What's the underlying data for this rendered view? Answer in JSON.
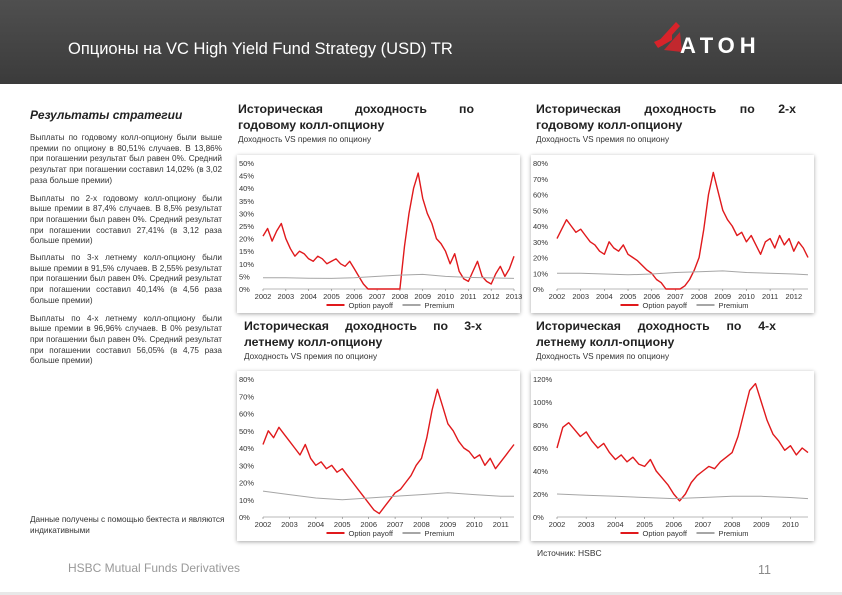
{
  "header": {
    "title": "Опционы на VC High Yield Fund Strategy (USD) TR",
    "logo_text": "АТОН",
    "logo_color": "#d8232a"
  },
  "sidebar": {
    "title": "Результаты стратегии",
    "paragraphs": [
      "Выплаты по годовому колл-опциону были выше премии по опциону в 80,51% случаев. В 13,86% при погашении результат был равен 0%. Средний результат при погашении составил 14,02% (в 3,02 раза больше премии)",
      "Выплаты по 2-х годовому колл-опциону были выше премии в 87,4% случаев. В 8,5% результат при погашении был равен 0%. Средний результат при погашении составил 27,41% (в 3,12 раза больше премии)",
      "Выплаты по 3-х летнему колл-опциону были выше премии в 91,5% случаев. В 2,55% результат при погашении был равен 0%. Средний результат при погашении составил 40,14% (в 4,56 раза больше премии)",
      "Выплаты по 4-х летнему колл-опциону были выше премии в 96,96% случаев. В 0% результат при погашении был равен 0%. Средний результат при погашении составил 56,05% (в 4,75 раза больше премии)"
    ],
    "footnote": "Данные получены с помощью бектеста и являются индикативными"
  },
  "panels": [
    {
      "title": "Историческая доходность по годовому колл-опциону",
      "subtitle": "Доходность VS премия по опциону"
    },
    {
      "title": "Историческая доходность по 2-х годовому колл-опциону",
      "subtitle": "Доходность VS премия по опциону"
    },
    {
      "title": "Историческая доходность по 3-х летнему колл-опциону",
      "subtitle": "Доходность VS премия по опциону"
    },
    {
      "title": "Историческая доходность по 4-х летнему колл-опциону",
      "subtitle": "Доходность VS премия по опциону"
    }
  ],
  "chart_data": [
    {
      "type": "line",
      "ylim": [
        0,
        50
      ],
      "yticks": [
        "0%",
        "5%",
        "10%",
        "15%",
        "20%",
        "25%",
        "30%",
        "35%",
        "40%",
        "45%",
        "50%"
      ],
      "xticks": [
        "2002",
        "2003",
        "2004",
        "2005",
        "2006",
        "2007",
        "2008",
        "2009",
        "2010",
        "2011",
        "2012",
        "2013"
      ],
      "xlim": [
        2002,
        2013
      ],
      "series": [
        {
          "name": "Option payoff",
          "color": "#e0191c",
          "x": [
            2002.0,
            2002.2,
            2002.4,
            2002.6,
            2002.8,
            2003.0,
            2003.2,
            2003.4,
            2003.6,
            2003.8,
            2004.0,
            2004.2,
            2004.4,
            2004.6,
            2004.8,
            2005.0,
            2005.2,
            2005.4,
            2005.6,
            2005.8,
            2006.0,
            2006.2,
            2006.4,
            2006.6,
            2006.8,
            2007.0,
            2007.2,
            2007.4,
            2007.6,
            2007.8,
            2008.0,
            2008.2,
            2008.4,
            2008.6,
            2008.8,
            2009.0,
            2009.2,
            2009.4,
            2009.6,
            2009.8,
            2010.0,
            2010.2,
            2010.4,
            2010.6,
            2010.8,
            2011.0,
            2011.2,
            2011.4,
            2011.6,
            2011.8,
            2012.0,
            2012.2,
            2012.4,
            2012.6,
            2012.8,
            2013.0
          ],
          "values": [
            21,
            24,
            19,
            23,
            26,
            20,
            16,
            13,
            15,
            14,
            12,
            11,
            13,
            12,
            10,
            11,
            12,
            10,
            9,
            11,
            8,
            5,
            2,
            0,
            0,
            0,
            0,
            0,
            0,
            0,
            0,
            17,
            30,
            40,
            46,
            36,
            30,
            26,
            20,
            18,
            15,
            10,
            14,
            7,
            4,
            3,
            7,
            11,
            5,
            3,
            2,
            6,
            9,
            5,
            8,
            13
          ]
        },
        {
          "name": "Premium",
          "color": "#a6a6a6",
          "x": [
            2002.0,
            2003.0,
            2004.0,
            2005.0,
            2006.0,
            2007.0,
            2008.0,
            2009.0,
            2010.0,
            2011.0,
            2012.0,
            2013.0
          ],
          "values": [
            4.5,
            4.5,
            4.3,
            4.2,
            4.5,
            5.0,
            5.5,
            5.8,
            5.0,
            4.6,
            4.4,
            4.2
          ]
        }
      ]
    },
    {
      "type": "line",
      "ylim": [
        0,
        80
      ],
      "yticks": [
        "0%",
        "10%",
        "20%",
        "30%",
        "40%",
        "50%",
        "60%",
        "70%",
        "80%"
      ],
      "xticks": [
        "2002",
        "2003",
        "2004",
        "2005",
        "2006",
        "2007",
        "2008",
        "2009",
        "2010",
        "2011",
        "2012"
      ],
      "xlim": [
        2002,
        2012.6
      ],
      "series": [
        {
          "name": "Option payoff",
          "color": "#e0191c",
          "x": [
            2002.0,
            2002.2,
            2002.4,
            2002.6,
            2002.8,
            2003.0,
            2003.2,
            2003.4,
            2003.6,
            2003.8,
            2004.0,
            2004.2,
            2004.4,
            2004.6,
            2004.8,
            2005.0,
            2005.2,
            2005.4,
            2005.6,
            2005.8,
            2006.0,
            2006.2,
            2006.4,
            2006.6,
            2006.8,
            2007.0,
            2007.2,
            2007.4,
            2007.6,
            2007.8,
            2008.0,
            2008.2,
            2008.4,
            2008.6,
            2008.8,
            2009.0,
            2009.2,
            2009.4,
            2009.6,
            2009.8,
            2010.0,
            2010.2,
            2010.4,
            2010.6,
            2010.8,
            2011.0,
            2011.2,
            2011.4,
            2011.6,
            2011.8,
            2012.0,
            2012.2,
            2012.4,
            2012.6
          ],
          "values": [
            32,
            38,
            44,
            40,
            36,
            38,
            34,
            30,
            28,
            24,
            22,
            30,
            26,
            24,
            28,
            22,
            20,
            18,
            15,
            12,
            10,
            6,
            4,
            0,
            0,
            0,
            0,
            2,
            6,
            12,
            20,
            38,
            60,
            74,
            62,
            50,
            44,
            40,
            34,
            36,
            30,
            34,
            28,
            22,
            30,
            32,
            26,
            34,
            28,
            32,
            24,
            30,
            26,
            20
          ]
        },
        {
          "name": "Premium",
          "color": "#a6a6a6",
          "x": [
            2002.0,
            2003.0,
            2004.0,
            2005.0,
            2006.0,
            2007.0,
            2008.0,
            2009.0,
            2010.0,
            2011.0,
            2012.0,
            2012.6
          ],
          "values": [
            10,
            10,
            9.5,
            9,
            9.5,
            10.5,
            11,
            11.5,
            10.5,
            10,
            9.5,
            9
          ]
        }
      ]
    },
    {
      "type": "line",
      "ylim": [
        0,
        80
      ],
      "yticks": [
        "0%",
        "10%",
        "20%",
        "30%",
        "40%",
        "50%",
        "60%",
        "70%",
        "80%"
      ],
      "xticks": [
        "2002",
        "2003",
        "2004",
        "2005",
        "2006",
        "2007",
        "2008",
        "2009",
        "2010",
        "2011"
      ],
      "xlim": [
        2002,
        2011.5
      ],
      "series": [
        {
          "name": "Option payoff",
          "color": "#e0191c",
          "x": [
            2002.0,
            2002.2,
            2002.4,
            2002.6,
            2002.8,
            2003.0,
            2003.2,
            2003.4,
            2003.6,
            2003.8,
            2004.0,
            2004.2,
            2004.4,
            2004.6,
            2004.8,
            2005.0,
            2005.2,
            2005.4,
            2005.6,
            2005.8,
            2006.0,
            2006.2,
            2006.4,
            2006.6,
            2006.8,
            2007.0,
            2007.2,
            2007.4,
            2007.6,
            2007.8,
            2008.0,
            2008.2,
            2008.4,
            2008.6,
            2008.8,
            2009.0,
            2009.2,
            2009.4,
            2009.6,
            2009.8,
            2010.0,
            2010.2,
            2010.4,
            2010.6,
            2010.8,
            2011.0,
            2011.2,
            2011.5
          ],
          "values": [
            42,
            50,
            46,
            52,
            48,
            44,
            40,
            36,
            42,
            34,
            30,
            32,
            28,
            30,
            26,
            28,
            24,
            20,
            16,
            12,
            8,
            4,
            2,
            6,
            10,
            14,
            16,
            20,
            24,
            30,
            34,
            46,
            62,
            74,
            64,
            54,
            50,
            44,
            40,
            38,
            34,
            36,
            30,
            34,
            28,
            32,
            36,
            42
          ]
        },
        {
          "name": "Premium",
          "color": "#a6a6a6",
          "x": [
            2002.0,
            2003.0,
            2004.0,
            2005.0,
            2006.0,
            2007.0,
            2008.0,
            2009.0,
            2010.0,
            2011.0,
            2011.5
          ],
          "values": [
            15,
            13,
            11,
            10,
            11,
            12,
            13,
            14,
            13,
            12,
            12
          ]
        }
      ]
    },
    {
      "type": "line",
      "ylim": [
        0,
        120
      ],
      "yticks": [
        "0%",
        "20%",
        "40%",
        "60%",
        "80%",
        "100%",
        "120%"
      ],
      "xticks": [
        "2002",
        "2003",
        "2004",
        "2005",
        "2006",
        "2007",
        "2008",
        "2009",
        "2010"
      ],
      "xlim": [
        2002,
        2010.6
      ],
      "series": [
        {
          "name": "Option payoff",
          "color": "#e0191c",
          "x": [
            2002.0,
            2002.2,
            2002.4,
            2002.6,
            2002.8,
            2003.0,
            2003.2,
            2003.4,
            2003.6,
            2003.8,
            2004.0,
            2004.2,
            2004.4,
            2004.6,
            2004.8,
            2005.0,
            2005.2,
            2005.4,
            2005.6,
            2005.8,
            2006.0,
            2006.2,
            2006.4,
            2006.6,
            2006.8,
            2007.0,
            2007.2,
            2007.4,
            2007.6,
            2007.8,
            2008.0,
            2008.2,
            2008.4,
            2008.6,
            2008.8,
            2009.0,
            2009.2,
            2009.4,
            2009.6,
            2009.8,
            2010.0,
            2010.2,
            2010.4,
            2010.6
          ],
          "values": [
            60,
            78,
            82,
            76,
            70,
            74,
            66,
            60,
            64,
            56,
            50,
            54,
            48,
            52,
            46,
            44,
            50,
            40,
            34,
            28,
            20,
            14,
            20,
            30,
            36,
            40,
            44,
            42,
            48,
            52,
            56,
            70,
            90,
            110,
            116,
            100,
            84,
            72,
            66,
            58,
            62,
            54,
            60,
            56
          ]
        },
        {
          "name": "Premium",
          "color": "#a6a6a6",
          "x": [
            2002.0,
            2003.0,
            2004.0,
            2005.0,
            2006.0,
            2007.0,
            2008.0,
            2009.0,
            2010.0,
            2010.6
          ],
          "values": [
            20,
            19,
            18,
            17,
            16,
            17,
            18,
            18,
            17,
            16
          ]
        }
      ]
    }
  ],
  "footer": {
    "left_text": "HSBC Mutual Funds Derivatives",
    "source": "Источник: HSBC",
    "page_number": "11"
  }
}
